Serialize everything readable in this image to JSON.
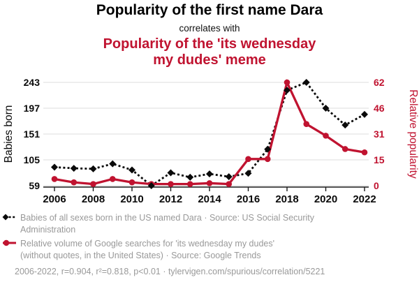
{
  "header": {
    "title": "Popularity of the first name Dara",
    "connector": "correlates with",
    "subtitle_lines": [
      "Popularity of the 'its wednesday",
      "my dudes' meme"
    ]
  },
  "chart_data": {
    "type": "line",
    "title": "Popularity of the first name Dara",
    "subtitle": "correlates with Popularity of the 'its wednesday my dudes' meme",
    "x": [
      2006,
      2007,
      2008,
      2009,
      2010,
      2011,
      2012,
      2013,
      2014,
      2015,
      2016,
      2017,
      2018,
      2019,
      2020,
      2021,
      2022
    ],
    "x_tick_years": [
      2006,
      2008,
      2010,
      2012,
      2014,
      2016,
      2018,
      2020,
      2022
    ],
    "grid": true,
    "legend_position": "bottom",
    "series": [
      {
        "id": "dara",
        "name": "Babies of all sexes born in the US named Dara",
        "source": "US Social Security Administration",
        "axis": "left",
        "color": "#0a0a0a",
        "style": "dashed-diamond",
        "values": [
          92,
          90,
          89,
          98,
          87,
          59,
          82,
          74,
          80,
          75,
          81,
          124,
          229,
          243,
          197,
          167,
          186
        ]
      },
      {
        "id": "meme",
        "name": "Relative volume of Google searches for 'its wednesday my dudes' (without quotes, in the United States)",
        "source": "Google Trends",
        "axis": "right",
        "color": "#c01330",
        "style": "solid-circle",
        "values": [
          4,
          2,
          1,
          4,
          2,
          1,
          1,
          1,
          1.5,
          1,
          16,
          16,
          62,
          37,
          30,
          22,
          20
        ]
      }
    ],
    "left_axis": {
      "label": "Babies born",
      "ticks": [
        59,
        105,
        151,
        197,
        243
      ],
      "range": [
        59,
        243
      ]
    },
    "right_axis": {
      "label": "Relative popularity",
      "ticks": [
        0,
        15,
        31,
        46,
        62
      ],
      "range": [
        0,
        62
      ]
    },
    "stats": "2006-2022, r=0.904, r²=0.818, p<0.01"
  },
  "legend": {
    "rows": [
      {
        "icon": "black-diamond-dashed",
        "lines": [
          "Babies of all sexes born in the US named Dara · Source: US Social Security",
          "Administration"
        ]
      },
      {
        "icon": "red-circle-solid",
        "lines": [
          "Relative volume of Google searches for 'its wednesday my dudes'",
          "(without quotes, in the United States) · Source: Google Trends"
        ]
      }
    ],
    "footnote": "2006-2022, r=0.904, r²=0.818, p<0.01 · tylervigen.com/spurious/correlation/5221"
  },
  "colors": {
    "red": "#c01330",
    "black": "#0a0a0a",
    "gray_text": "#999999",
    "grid": "#e4e4e4",
    "axis": "#1a1a1a"
  }
}
